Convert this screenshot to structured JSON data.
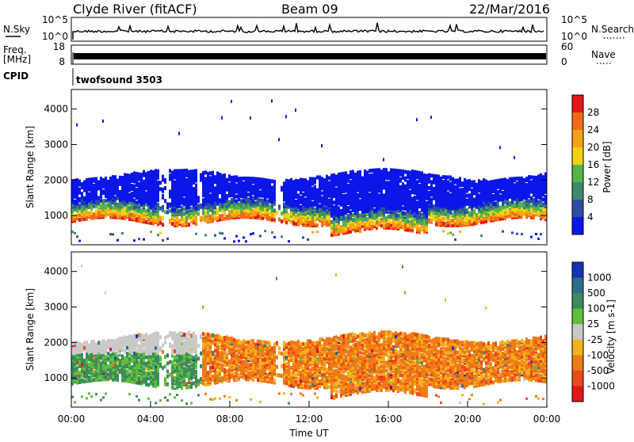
{
  "header": {
    "station": "Clyde River (fitACF)",
    "beam": "Beam 09",
    "date": "22/Mar/2016"
  },
  "top_panels": {
    "nsky_label": "N.Sky",
    "nsearch_label": "N.Search",
    "nsky_ticks": [
      "10^5",
      "10^0"
    ],
    "nsearch_ticks": [
      "10^5",
      "10^0"
    ],
    "freq_label_1": "Freq.",
    "freq_label_2": "[MHz]",
    "freq_ticks": [
      "18",
      "8"
    ],
    "nave_label": "Nave",
    "nave_ticks": [
      "60",
      "0"
    ],
    "cpid_label": "CPID",
    "cpid_value": "twofsound 3503"
  },
  "chart_data": [
    {
      "type": "heatmap",
      "ylabel": "Slant Range [km]",
      "xlabel": "",
      "xlim": [
        "00:00",
        "24:00"
      ],
      "ylim": [
        180,
        4550
      ],
      "y_ticks": [
        1000,
        2000,
        3000,
        4000
      ],
      "colorbar": {
        "label": "Power [dB]",
        "ticks": [
          "4",
          "8",
          "12",
          "16",
          "20",
          "24",
          "28"
        ],
        "colors": [
          "#0a17e8",
          "#2d4fa0",
          "#3f8a6a",
          "#55b548",
          "#f2d20e",
          "#f5a117",
          "#f06b19",
          "#e4161c"
        ]
      }
    },
    {
      "type": "heatmap",
      "ylabel": "Slant Range [km]",
      "xlabel": "Time UT",
      "xlim": [
        "00:00",
        "24:00"
      ],
      "ylim": [
        180,
        4550
      ],
      "x_ticks": [
        "00:00",
        "04:00",
        "08:00",
        "12:00",
        "16:00",
        "20:00",
        "00:00"
      ],
      "y_ticks": [
        1000,
        2000,
        3000,
        4000
      ],
      "colorbar": {
        "label": "Velocity [m s-1]",
        "ticks": [
          "1000",
          "500",
          "100",
          "25",
          "-25",
          "-100",
          "-500",
          "-1000"
        ],
        "colors": [
          "#1532b5",
          "#2f6b8a",
          "#3c8a5e",
          "#5fbf3a",
          "#c9c9c9",
          "#f2b21c",
          "#ef7a18",
          "#ea4a19",
          "#e3161b"
        ]
      }
    }
  ]
}
